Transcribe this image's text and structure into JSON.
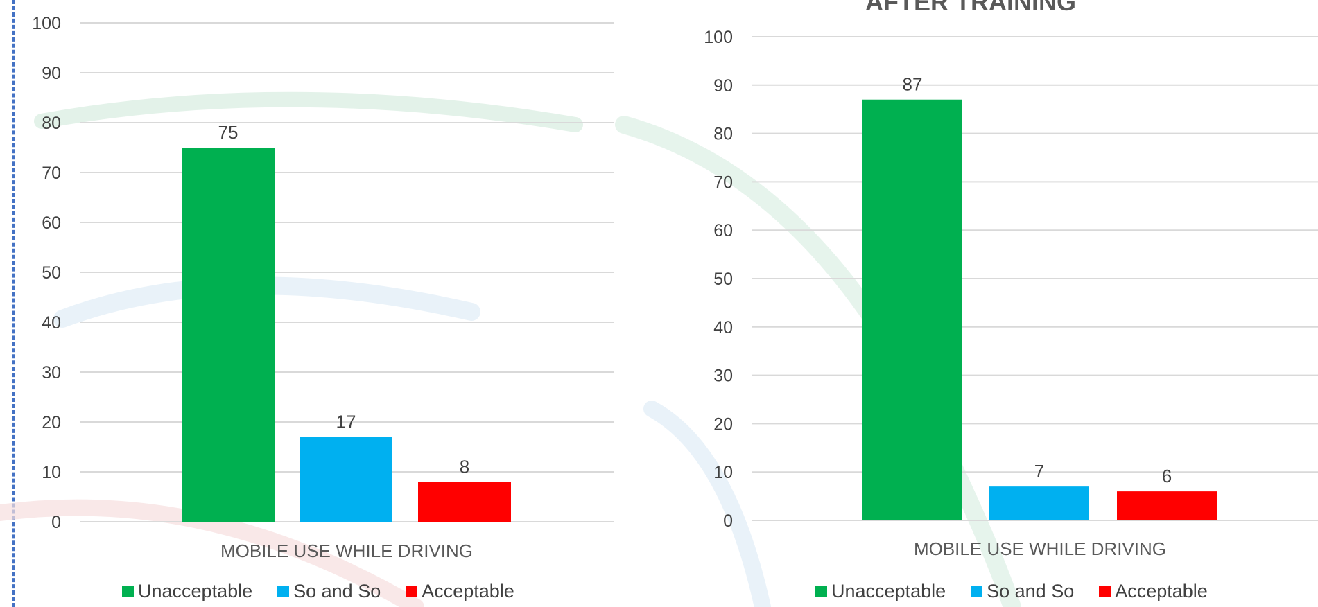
{
  "colors": {
    "unacceptable": "#00b050",
    "so_and_so": "#00b0f0",
    "acceptable": "#ff0000",
    "grid": "#d9d9d9",
    "border": "#4472c4"
  },
  "chart_data": [
    {
      "type": "bar",
      "title": "",
      "xlabel": "MOBILE USE WHILE DRIVING",
      "ylabel": "",
      "ylim": [
        0,
        100
      ],
      "yticks": [
        0,
        10,
        20,
        30,
        40,
        50,
        60,
        70,
        80,
        90,
        100
      ],
      "grid": true,
      "legend_position": "bottom",
      "categories": [
        "MOBILE USE WHILE DRIVING"
      ],
      "series": [
        {
          "name": "Unacceptable",
          "values": [
            75
          ],
          "label": "75"
        },
        {
          "name": "So and So",
          "values": [
            17
          ],
          "label": "17"
        },
        {
          "name": "Acceptable",
          "values": [
            8
          ],
          "label": "8"
        }
      ]
    },
    {
      "type": "bar",
      "title": "AFTER TRAINING",
      "xlabel": "MOBILE USE WHILE DRIVING",
      "ylabel": "",
      "ylim": [
        0,
        100
      ],
      "yticks": [
        0,
        10,
        20,
        30,
        40,
        50,
        60,
        70,
        80,
        90,
        100
      ],
      "grid": true,
      "legend_position": "bottom",
      "categories": [
        "MOBILE USE WHILE DRIVING"
      ],
      "series": [
        {
          "name": "Unacceptable",
          "values": [
            87
          ],
          "label": "87"
        },
        {
          "name": "So and So",
          "values": [
            7
          ],
          "label": "7"
        },
        {
          "name": "Acceptable",
          "values": [
            6
          ],
          "label": "6"
        }
      ]
    }
  ]
}
